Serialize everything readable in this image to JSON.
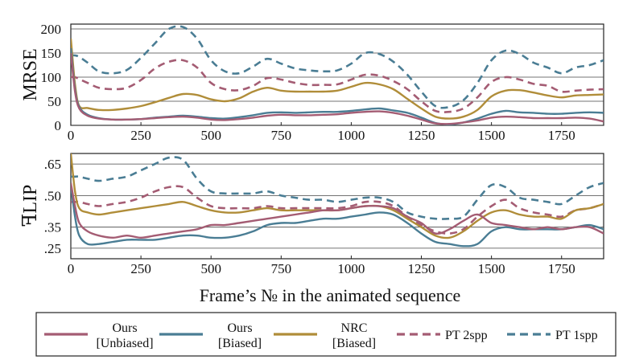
{
  "chart_data": [
    {
      "type": "line",
      "ylabel": "MRSE",
      "xlabel": "",
      "xlim": [
        0,
        1900
      ],
      "ylim": [
        0,
        210
      ],
      "grid": "horizontal",
      "xticks": [
        0,
        250,
        500,
        750,
        1000,
        1250,
        1500,
        1750
      ],
      "xtick_labels": [
        "0",
        "250",
        "500",
        "750",
        "1000",
        "1250",
        "1500",
        "1750"
      ],
      "yticks": [
        0,
        50,
        100,
        150,
        200
      ],
      "ytick_labels": [
        "0",
        "50",
        "100",
        "150",
        "200"
      ],
      "series": [
        {
          "name": "Ours [Unbiased]",
          "x": [
            0,
            15,
            30,
            60,
            100,
            150,
            200,
            250,
            300,
            350,
            400,
            450,
            500,
            550,
            600,
            650,
            700,
            750,
            800,
            850,
            900,
            950,
            1000,
            1050,
            1100,
            1150,
            1200,
            1250,
            1300,
            1350,
            1400,
            1450,
            1500,
            1550,
            1600,
            1650,
            1700,
            1750,
            1800,
            1850,
            1900
          ],
          "values": [
            150,
            70,
            35,
            20,
            14,
            12,
            12,
            13,
            15,
            17,
            18,
            16,
            12,
            11,
            13,
            16,
            20,
            22,
            21,
            21,
            22,
            23,
            26,
            28,
            29,
            26,
            20,
            12,
            4,
            3,
            6,
            10,
            16,
            18,
            17,
            15,
            15,
            15,
            16,
            14,
            8
          ]
        },
        {
          "name": "Ours [Biased]",
          "x": [
            0,
            15,
            30,
            60,
            100,
            150,
            200,
            250,
            300,
            350,
            400,
            450,
            500,
            550,
            600,
            650,
            700,
            750,
            800,
            850,
            900,
            950,
            1000,
            1050,
            1100,
            1150,
            1200,
            1250,
            1300,
            1350,
            1400,
            1450,
            1500,
            1550,
            1600,
            1650,
            1700,
            1750,
            1800,
            1850,
            1900
          ],
          "values": [
            160,
            75,
            38,
            22,
            15,
            12,
            12,
            13,
            16,
            18,
            20,
            18,
            15,
            14,
            17,
            21,
            26,
            27,
            26,
            27,
            28,
            28,
            30,
            33,
            35,
            31,
            26,
            16,
            5,
            2,
            6,
            14,
            24,
            30,
            27,
            26,
            24,
            24,
            26,
            27,
            26
          ]
        },
        {
          "name": "NRC [Biased]",
          "x": [
            0,
            15,
            30,
            60,
            100,
            150,
            200,
            250,
            300,
            350,
            400,
            450,
            500,
            550,
            600,
            650,
            700,
            750,
            800,
            850,
            900,
            950,
            1000,
            1050,
            1100,
            1150,
            1200,
            1250,
            1300,
            1350,
            1400,
            1450,
            1500,
            1550,
            1600,
            1650,
            1700,
            1750,
            1800,
            1850,
            1900
          ],
          "values": [
            180,
            85,
            40,
            36,
            32,
            32,
            35,
            40,
            48,
            57,
            65,
            63,
            54,
            50,
            56,
            70,
            78,
            72,
            70,
            70,
            70,
            72,
            80,
            88,
            85,
            75,
            55,
            35,
            18,
            14,
            18,
            32,
            60,
            72,
            73,
            68,
            62,
            58,
            62,
            63,
            64
          ]
        },
        {
          "name": "PT 2spp",
          "x": [
            0,
            15,
            30,
            60,
            100,
            150,
            200,
            250,
            300,
            350,
            400,
            450,
            500,
            550,
            600,
            650,
            700,
            750,
            800,
            850,
            900,
            950,
            1000,
            1050,
            1100,
            1150,
            1200,
            1250,
            1300,
            1350,
            1400,
            1450,
            1500,
            1550,
            1600,
            1650,
            1700,
            1750,
            1800,
            1850,
            1900
          ],
          "values": [
            100,
            100,
            96,
            88,
            78,
            75,
            78,
            94,
            118,
            132,
            135,
            120,
            88,
            75,
            73,
            82,
            98,
            95,
            88,
            84,
            84,
            85,
            95,
            105,
            103,
            92,
            75,
            50,
            30,
            28,
            35,
            58,
            90,
            100,
            95,
            86,
            82,
            70,
            72,
            74,
            75
          ]
        },
        {
          "name": "PT 1spp",
          "x": [
            0,
            15,
            30,
            60,
            100,
            150,
            200,
            250,
            300,
            350,
            400,
            450,
            500,
            550,
            600,
            650,
            700,
            750,
            800,
            850,
            900,
            950,
            1000,
            1050,
            1100,
            1150,
            1200,
            1250,
            1300,
            1350,
            1400,
            1450,
            1500,
            1550,
            1600,
            1650,
            1700,
            1750,
            1800,
            1850,
            1900
          ],
          "values": [
            145,
            145,
            142,
            130,
            112,
            108,
            115,
            140,
            170,
            200,
            204,
            180,
            135,
            112,
            108,
            122,
            138,
            128,
            118,
            114,
            112,
            114,
            128,
            150,
            148,
            132,
            105,
            70,
            40,
            38,
            52,
            88,
            135,
            155,
            148,
            130,
            120,
            108,
            120,
            125,
            135
          ]
        }
      ]
    },
    {
      "type": "line",
      "ylabel": "ꟻLIP",
      "xlabel": "Frame’s № in the animated sequence",
      "xlim": [
        0,
        1900
      ],
      "ylim": [
        0.2,
        0.7
      ],
      "grid": "horizontal",
      "xticks": [
        0,
        250,
        500,
        750,
        1000,
        1250,
        1500,
        1750
      ],
      "xtick_labels": [
        "0",
        "250",
        "500",
        "750",
        "1000",
        "1250",
        "1500",
        "1750"
      ],
      "yticks": [
        0.25,
        0.35,
        0.5,
        0.65
      ],
      "ytick_labels": [
        ".25",
        ".35",
        ".50",
        ".65"
      ],
      "series": [
        {
          "name": "Ours [Unbiased]",
          "x": [
            0,
            15,
            30,
            60,
            100,
            150,
            200,
            250,
            300,
            350,
            400,
            450,
            500,
            550,
            600,
            650,
            700,
            750,
            800,
            850,
            900,
            950,
            1000,
            1050,
            1100,
            1150,
            1200,
            1250,
            1300,
            1350,
            1400,
            1450,
            1500,
            1550,
            1600,
            1650,
            1700,
            1750,
            1800,
            1850,
            1900
          ],
          "values": [
            0.56,
            0.45,
            0.37,
            0.33,
            0.31,
            0.3,
            0.31,
            0.3,
            0.31,
            0.32,
            0.33,
            0.34,
            0.36,
            0.36,
            0.37,
            0.38,
            0.39,
            0.4,
            0.41,
            0.42,
            0.43,
            0.43,
            0.44,
            0.45,
            0.45,
            0.44,
            0.4,
            0.37,
            0.32,
            0.34,
            0.38,
            0.41,
            0.37,
            0.36,
            0.35,
            0.34,
            0.35,
            0.34,
            0.35,
            0.35,
            0.32
          ]
        },
        {
          "name": "Ours [Biased]",
          "x": [
            0,
            15,
            30,
            60,
            100,
            150,
            200,
            250,
            300,
            350,
            400,
            450,
            500,
            550,
            600,
            650,
            700,
            750,
            800,
            850,
            900,
            950,
            1000,
            1050,
            1100,
            1150,
            1200,
            1250,
            1300,
            1350,
            1400,
            1450,
            1500,
            1550,
            1600,
            1650,
            1700,
            1750,
            1800,
            1850,
            1900
          ],
          "values": [
            0.55,
            0.4,
            0.31,
            0.27,
            0.27,
            0.28,
            0.29,
            0.29,
            0.29,
            0.3,
            0.31,
            0.31,
            0.3,
            0.3,
            0.31,
            0.33,
            0.36,
            0.37,
            0.37,
            0.38,
            0.39,
            0.39,
            0.4,
            0.41,
            0.42,
            0.41,
            0.37,
            0.32,
            0.28,
            0.27,
            0.26,
            0.27,
            0.33,
            0.35,
            0.34,
            0.34,
            0.34,
            0.34,
            0.35,
            0.36,
            0.34
          ]
        },
        {
          "name": "NRC [Biased]",
          "x": [
            0,
            15,
            30,
            60,
            100,
            150,
            200,
            250,
            300,
            350,
            400,
            450,
            500,
            550,
            600,
            650,
            700,
            750,
            800,
            850,
            900,
            950,
            1000,
            1050,
            1100,
            1150,
            1200,
            1250,
            1300,
            1350,
            1400,
            1450,
            1500,
            1550,
            1600,
            1650,
            1700,
            1750,
            1800,
            1850,
            1900
          ],
          "values": [
            0.7,
            0.52,
            0.44,
            0.42,
            0.41,
            0.42,
            0.43,
            0.44,
            0.45,
            0.46,
            0.47,
            0.45,
            0.43,
            0.42,
            0.42,
            0.43,
            0.44,
            0.43,
            0.43,
            0.43,
            0.43,
            0.43,
            0.44,
            0.45,
            0.45,
            0.43,
            0.39,
            0.35,
            0.31,
            0.3,
            0.33,
            0.38,
            0.42,
            0.43,
            0.41,
            0.4,
            0.4,
            0.39,
            0.43,
            0.44,
            0.46
          ]
        },
        {
          "name": "PT 2spp",
          "x": [
            0,
            15,
            30,
            60,
            100,
            150,
            200,
            250,
            300,
            350,
            400,
            450,
            500,
            550,
            600,
            650,
            700,
            750,
            800,
            850,
            900,
            950,
            1000,
            1050,
            1100,
            1150,
            1200,
            1250,
            1300,
            1350,
            1400,
            1450,
            1500,
            1550,
            1600,
            1650,
            1700,
            1750,
            1800,
            1850,
            1900
          ],
          "values": [
            0.47,
            0.47,
            0.47,
            0.46,
            0.45,
            0.46,
            0.47,
            0.49,
            0.52,
            0.54,
            0.54,
            0.49,
            0.45,
            0.44,
            0.44,
            0.44,
            0.45,
            0.44,
            0.44,
            0.44,
            0.44,
            0.44,
            0.45,
            0.47,
            0.47,
            0.45,
            0.4,
            0.36,
            0.33,
            0.32,
            0.34,
            0.4,
            0.45,
            0.48,
            0.44,
            0.42,
            0.41,
            0.4,
            0.43,
            0.44,
            0.46
          ]
        },
        {
          "name": "PT 1spp",
          "x": [
            0,
            15,
            30,
            60,
            100,
            150,
            200,
            250,
            300,
            350,
            400,
            450,
            500,
            550,
            600,
            650,
            700,
            750,
            800,
            850,
            900,
            950,
            1000,
            1050,
            1100,
            1150,
            1200,
            1250,
            1300,
            1350,
            1400,
            1450,
            1500,
            1550,
            1600,
            1650,
            1700,
            1750,
            1800,
            1850,
            1900
          ],
          "values": [
            0.59,
            0.59,
            0.59,
            0.58,
            0.57,
            0.58,
            0.59,
            0.62,
            0.65,
            0.68,
            0.67,
            0.58,
            0.52,
            0.51,
            0.51,
            0.51,
            0.52,
            0.5,
            0.49,
            0.48,
            0.48,
            0.47,
            0.48,
            0.49,
            0.49,
            0.47,
            0.42,
            0.4,
            0.39,
            0.39,
            0.4,
            0.48,
            0.55,
            0.54,
            0.49,
            0.48,
            0.47,
            0.46,
            0.5,
            0.54,
            0.56
          ]
        }
      ]
    }
  ],
  "legend": {
    "placement": "bottom",
    "items": [
      {
        "line1": "Ours",
        "line2": "[Unbiased]",
        "color": "#a45c73",
        "dashed": false
      },
      {
        "line1": "Ours",
        "line2": "[Biased]",
        "color": "#4a7d94",
        "dashed": false
      },
      {
        "line1": "NRC",
        "line2": "[Biased]",
        "color": "#b08d39",
        "dashed": false
      },
      {
        "line1": "PT 2spp",
        "line2": "",
        "color": "#a45c73",
        "dashed": true
      },
      {
        "line1": "PT 1spp",
        "line2": "",
        "color": "#4a7d94",
        "dashed": true
      }
    ]
  },
  "colors": {
    "ours_unbiased": "#a45c73",
    "ours_biased": "#4a7d94",
    "nrc_biased": "#b08d39",
    "pt_2spp": "#a45c73",
    "pt_1spp": "#4a7d94",
    "grid": "#444444"
  }
}
